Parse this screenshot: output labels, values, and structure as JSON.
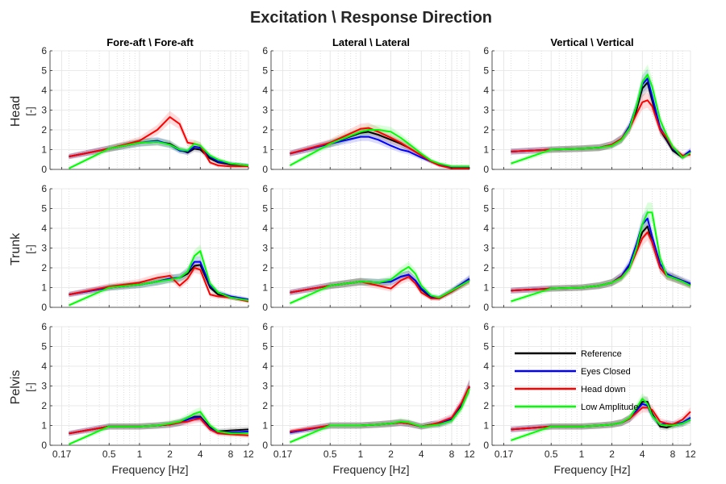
{
  "chart_data": {
    "type": "line",
    "title": "Excitation \\ Response Direction",
    "xlabel": "Frequency [Hz]",
    "ylabel_unit": "[-]",
    "xscale": "log",
    "xlim": [
      0.13,
      12
    ],
    "ylim": [
      0,
      6
    ],
    "xticks": [
      0.17,
      0.5,
      1,
      2,
      4,
      8,
      12
    ],
    "xtick_labels": [
      "0.17",
      "0.5",
      "1",
      "2",
      "4",
      "8",
      "12"
    ],
    "yticks": [
      0,
      1,
      2,
      3,
      4,
      5,
      6
    ],
    "ytick_labels": [
      "0",
      "1",
      "2",
      "3",
      "4",
      "5",
      "6"
    ],
    "grid": true,
    "legend_position": "bottom-right panel (Pelvis, Vertical)",
    "columns": [
      "Fore-aft \\ Fore-aft",
      "Lateral \\ Lateral",
      "Vertical \\ Vertical"
    ],
    "rows": [
      "Head",
      "Trunk",
      "Pelvis"
    ],
    "series_meta": [
      {
        "name": "Reference",
        "color": "#000000"
      },
      {
        "name": "Eyes Closed",
        "color": "#0000ff"
      },
      {
        "name": "Head down",
        "color": "#ff0000"
      },
      {
        "name": "Low Amplitude",
        "color": "#00ff00"
      }
    ],
    "panels": [
      {
        "row": "Head",
        "col": "Fore-aft \\ Fore-aft",
        "x": [
          0.2,
          0.5,
          1,
          1.5,
          2,
          2.5,
          3,
          3.5,
          4,
          5,
          6,
          8,
          12
        ],
        "series": [
          {
            "name": "Reference",
            "values": [
              0.65,
              1.05,
              1.35,
              1.4,
              1.3,
              1.0,
              0.85,
              1.05,
              1.0,
              0.55,
              0.35,
              0.25,
              0.2
            ]
          },
          {
            "name": "Eyes Closed",
            "values": [
              0.65,
              1.05,
              1.35,
              1.45,
              1.25,
              0.95,
              0.9,
              1.15,
              1.1,
              0.65,
              0.4,
              0.3,
              0.2
            ]
          },
          {
            "name": "Head down",
            "values": [
              0.65,
              1.05,
              1.45,
              2.0,
              2.65,
              2.3,
              1.35,
              1.3,
              1.2,
              0.35,
              0.2,
              0.15,
              0.15
            ]
          },
          {
            "name": "Low Amplitude",
            "values": [
              0.05,
              1.05,
              1.35,
              1.4,
              1.25,
              1.0,
              0.95,
              1.3,
              1.2,
              0.7,
              0.5,
              0.3,
              0.2
            ]
          }
        ]
      },
      {
        "row": "Head",
        "col": "Lateral \\ Lateral",
        "x": [
          0.2,
          0.5,
          1,
          1.2,
          1.5,
          2,
          2.5,
          3,
          4,
          5,
          6,
          8,
          12
        ],
        "series": [
          {
            "name": "Reference",
            "values": [
              0.8,
              1.3,
              1.85,
              1.9,
              1.75,
              1.5,
              1.3,
              1.1,
              0.7,
              0.4,
              0.25,
              0.1,
              0.1
            ]
          },
          {
            "name": "Eyes Closed",
            "values": [
              0.8,
              1.3,
              1.65,
              1.65,
              1.5,
              1.2,
              1.0,
              0.9,
              0.6,
              0.4,
              0.25,
              0.1,
              0.1
            ]
          },
          {
            "name": "Head down",
            "values": [
              0.8,
              1.35,
              2.05,
              2.1,
              1.9,
              1.6,
              1.35,
              1.1,
              0.7,
              0.4,
              0.2,
              0.05,
              0.05
            ]
          },
          {
            "name": "Low Amplitude",
            "values": [
              0.2,
              1.3,
              1.9,
              2.0,
              2.0,
              1.9,
              1.6,
              1.3,
              0.8,
              0.45,
              0.3,
              0.15,
              0.15
            ]
          }
        ]
      },
      {
        "row": "Head",
        "col": "Vertical \\ Vertical",
        "x": [
          0.2,
          0.5,
          1,
          1.5,
          2,
          2.5,
          3,
          3.5,
          4,
          4.5,
          5,
          6,
          7,
          8,
          10,
          12
        ],
        "series": [
          {
            "name": "Reference",
            "values": [
              0.9,
              1.0,
              1.05,
              1.1,
              1.25,
              1.55,
              2.1,
              3.0,
              4.1,
              4.4,
              3.5,
              2.0,
              1.45,
              0.95,
              0.6,
              0.9
            ]
          },
          {
            "name": "Eyes Closed",
            "values": [
              0.9,
              1.0,
              1.05,
              1.1,
              1.25,
              1.55,
              2.2,
              3.2,
              4.3,
              4.6,
              3.7,
              2.1,
              1.55,
              1.05,
              0.65,
              0.95
            ]
          },
          {
            "name": "Head down",
            "values": [
              0.9,
              1.0,
              1.05,
              1.1,
              1.25,
              1.55,
              2.1,
              2.8,
              3.4,
              3.5,
              3.2,
              2.0,
              1.6,
              1.1,
              0.7,
              0.75
            ]
          },
          {
            "name": "Low Amplitude",
            "values": [
              0.3,
              1.0,
              1.05,
              1.1,
              1.2,
              1.5,
              2.1,
              3.2,
              4.4,
              4.8,
              4.2,
              2.5,
              1.7,
              1.15,
              0.6,
              0.85
            ]
          }
        ]
      },
      {
        "row": "Trunk",
        "col": "Fore-aft \\ Fore-aft",
        "x": [
          0.2,
          0.5,
          1,
          1.5,
          2,
          2.5,
          3,
          3.5,
          4,
          5,
          6,
          8,
          12
        ],
        "series": [
          {
            "name": "Reference",
            "values": [
              0.65,
              1.0,
              1.15,
              1.3,
              1.45,
              1.5,
              1.7,
              2.1,
              2.15,
              1.0,
              0.65,
              0.5,
              0.35
            ]
          },
          {
            "name": "Eyes Closed",
            "values": [
              0.65,
              1.0,
              1.15,
              1.3,
              1.45,
              1.5,
              1.8,
              2.3,
              2.3,
              1.1,
              0.75,
              0.55,
              0.4
            ]
          },
          {
            "name": "Head down",
            "values": [
              0.65,
              1.05,
              1.25,
              1.5,
              1.6,
              1.1,
              1.45,
              2.0,
              1.9,
              0.65,
              0.55,
              0.5,
              0.3
            ]
          },
          {
            "name": "Low Amplitude",
            "values": [
              0.1,
              1.0,
              1.15,
              1.3,
              1.4,
              1.5,
              1.8,
              2.6,
              2.85,
              1.2,
              0.75,
              0.5,
              0.35
            ]
          }
        ]
      },
      {
        "row": "Trunk",
        "col": "Lateral \\ Lateral",
        "x": [
          0.2,
          0.5,
          1,
          1.5,
          2,
          2.5,
          3,
          3.5,
          4,
          5,
          6,
          8,
          12
        ],
        "series": [
          {
            "name": "Reference",
            "values": [
              0.75,
              1.1,
              1.3,
              1.25,
              1.3,
              1.55,
              1.65,
              1.35,
              0.9,
              0.5,
              0.45,
              0.8,
              1.4
            ]
          },
          {
            "name": "Eyes Closed",
            "values": [
              0.75,
              1.1,
              1.3,
              1.25,
              1.3,
              1.55,
              1.65,
              1.35,
              0.95,
              0.55,
              0.5,
              0.85,
              1.45
            ]
          },
          {
            "name": "Head down",
            "values": [
              0.75,
              1.1,
              1.3,
              1.1,
              0.95,
              1.35,
              1.55,
              1.2,
              0.75,
              0.45,
              0.45,
              0.8,
              1.35
            ]
          },
          {
            "name": "Low Amplitude",
            "values": [
              0.2,
              1.1,
              1.3,
              1.25,
              1.4,
              1.8,
              2.05,
              1.7,
              1.1,
              0.6,
              0.5,
              0.85,
              1.35
            ]
          }
        ]
      },
      {
        "row": "Trunk",
        "col": "Vertical \\ Vertical",
        "x": [
          0.2,
          0.5,
          1,
          1.5,
          2,
          2.5,
          3,
          3.5,
          4,
          4.5,
          5,
          6,
          7,
          8,
          10,
          12
        ],
        "series": [
          {
            "name": "Reference",
            "values": [
              0.85,
              0.95,
              1.0,
              1.1,
              1.25,
              1.55,
              2.1,
              3.0,
              3.8,
              4.1,
              3.3,
              2.0,
              1.6,
              1.5,
              1.3,
              1.15
            ]
          },
          {
            "name": "Eyes Closed",
            "values": [
              0.85,
              0.95,
              1.0,
              1.1,
              1.25,
              1.6,
              2.2,
              3.2,
              4.2,
              4.5,
              3.6,
              2.2,
              1.7,
              1.55,
              1.35,
              1.2
            ]
          },
          {
            "name": "Head down",
            "values": [
              0.85,
              0.95,
              1.0,
              1.1,
              1.25,
              1.55,
              2.0,
              2.8,
              3.5,
              3.8,
              3.3,
              2.0,
              1.6,
              1.5,
              1.3,
              1.1
            ]
          },
          {
            "name": "Low Amplitude",
            "values": [
              0.3,
              0.95,
              1.0,
              1.1,
              1.25,
              1.5,
              2.0,
              3.0,
              4.2,
              4.8,
              4.8,
              2.5,
              1.6,
              1.5,
              1.3,
              1.1
            ]
          }
        ]
      },
      {
        "row": "Pelvis",
        "col": "Fore-aft \\ Fore-aft",
        "x": [
          0.2,
          0.5,
          1,
          1.5,
          2,
          2.5,
          3,
          3.5,
          4,
          5,
          6,
          8,
          12
        ],
        "series": [
          {
            "name": "Reference",
            "values": [
              0.6,
              0.95,
              0.95,
              1.0,
              1.05,
              1.15,
              1.3,
              1.45,
              1.45,
              0.9,
              0.7,
              0.75,
              0.8
            ]
          },
          {
            "name": "Eyes Closed",
            "values": [
              0.6,
              0.95,
              0.95,
              1.0,
              1.05,
              1.15,
              1.3,
              1.4,
              1.4,
              0.85,
              0.65,
              0.65,
              0.7
            ]
          },
          {
            "name": "Head down",
            "values": [
              0.6,
              0.95,
              0.95,
              1.0,
              1.05,
              1.15,
              1.2,
              1.3,
              1.35,
              0.8,
              0.6,
              0.55,
              0.5
            ]
          },
          {
            "name": "Low Amplitude",
            "values": [
              0.05,
              0.95,
              0.95,
              1.0,
              1.1,
              1.2,
              1.4,
              1.6,
              1.7,
              1.0,
              0.7,
              0.6,
              0.6
            ]
          }
        ]
      },
      {
        "row": "Pelvis",
        "col": "Lateral \\ Lateral",
        "x": [
          0.2,
          0.5,
          1,
          1.5,
          2,
          2.5,
          3,
          4,
          5,
          6,
          8,
          10,
          12
        ],
        "series": [
          {
            "name": "Reference",
            "values": [
              0.65,
              1.0,
              1.0,
              1.05,
              1.1,
              1.15,
              1.1,
              0.95,
              1.05,
              1.05,
              1.3,
              2.0,
              2.95
            ]
          },
          {
            "name": "Eyes Closed",
            "values": [
              0.65,
              1.0,
              1.0,
              1.05,
              1.1,
              1.15,
              1.1,
              0.95,
              1.05,
              1.1,
              1.35,
              2.1,
              3.0
            ]
          },
          {
            "name": "Head down",
            "values": [
              0.7,
              1.0,
              1.0,
              1.05,
              1.1,
              1.15,
              1.1,
              0.95,
              1.05,
              1.15,
              1.4,
              2.15,
              3.0
            ]
          },
          {
            "name": "Low Amplitude",
            "values": [
              0.15,
              1.0,
              1.0,
              1.05,
              1.1,
              1.2,
              1.15,
              0.95,
              1.0,
              1.05,
              1.25,
              1.9,
              2.85
            ]
          }
        ]
      },
      {
        "row": "Pelvis",
        "col": "Vertical \\ Vertical",
        "x": [
          0.2,
          0.5,
          1,
          1.5,
          2,
          2.5,
          3,
          3.5,
          4,
          4.5,
          5,
          6,
          7,
          8,
          10,
          12
        ],
        "series": [
          {
            "name": "Reference",
            "values": [
              0.8,
              0.95,
              0.95,
              1.0,
              1.05,
              1.15,
              1.35,
              1.75,
              2.2,
              2.2,
              1.6,
              0.95,
              0.9,
              1.0,
              1.1,
              1.3
            ]
          },
          {
            "name": "Eyes Closed",
            "values": [
              0.8,
              0.95,
              0.95,
              1.0,
              1.05,
              1.15,
              1.35,
              1.75,
              2.1,
              2.0,
              1.5,
              1.05,
              1.1,
              1.05,
              1.15,
              1.4
            ]
          },
          {
            "name": "Head down",
            "values": [
              0.8,
              0.95,
              0.95,
              1.0,
              1.05,
              1.15,
              1.35,
              1.65,
              1.9,
              1.9,
              1.8,
              1.2,
              1.1,
              1.05,
              1.3,
              1.7
            ]
          },
          {
            "name": "Low Amplitude",
            "values": [
              0.25,
              0.95,
              0.95,
              1.0,
              1.05,
              1.15,
              1.4,
              1.9,
              2.35,
              2.1,
              1.5,
              1.05,
              1.0,
              1.0,
              1.1,
              1.3
            ]
          }
        ]
      }
    ]
  }
}
